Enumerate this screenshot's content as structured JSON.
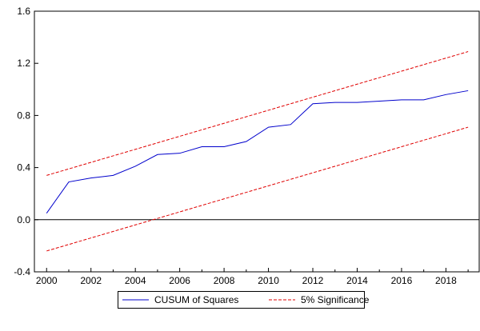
{
  "chart_data": {
    "type": "line",
    "title": "",
    "xlabel": "",
    "ylabel": "",
    "xlim": [
      1999.45,
      2019.5
    ],
    "ylim": [
      -0.4,
      1.6
    ],
    "xticks": [
      2000,
      2002,
      2004,
      2006,
      2008,
      2010,
      2012,
      2014,
      2016,
      2018
    ],
    "yticks": [
      -0.4,
      0.0,
      0.4,
      0.8,
      1.2,
      1.6
    ],
    "ytick_labels": [
      "-0.4",
      "0.0",
      "0.4",
      "0.8",
      "1.2",
      "1.6"
    ],
    "grid": false,
    "legend_position": "bottom-center",
    "x": [
      2000,
      2001,
      2002,
      2003,
      2004,
      2005,
      2006,
      2007,
      2008,
      2009,
      2010,
      2011,
      2012,
      2013,
      2014,
      2015,
      2016,
      2017,
      2018,
      2019
    ],
    "series": [
      {
        "name": "CUSUM of Squares",
        "color": "#0000cc",
        "style": "solid",
        "values": [
          0.05,
          0.29,
          0.32,
          0.34,
          0.41,
          0.5,
          0.51,
          0.56,
          0.56,
          0.6,
          0.71,
          0.73,
          0.89,
          0.9,
          0.9,
          0.91,
          0.92,
          0.92,
          0.96,
          0.99
        ]
      },
      {
        "name": "5% Significance",
        "color": "#e00000",
        "style": "dashed",
        "values_start": 0.34,
        "values_end": 1.29,
        "legend": true
      },
      {
        "name": "5% Significance (lower)",
        "color": "#e00000",
        "style": "dashed",
        "values_start": -0.24,
        "values_end": 0.71,
        "legend": false
      }
    ]
  }
}
